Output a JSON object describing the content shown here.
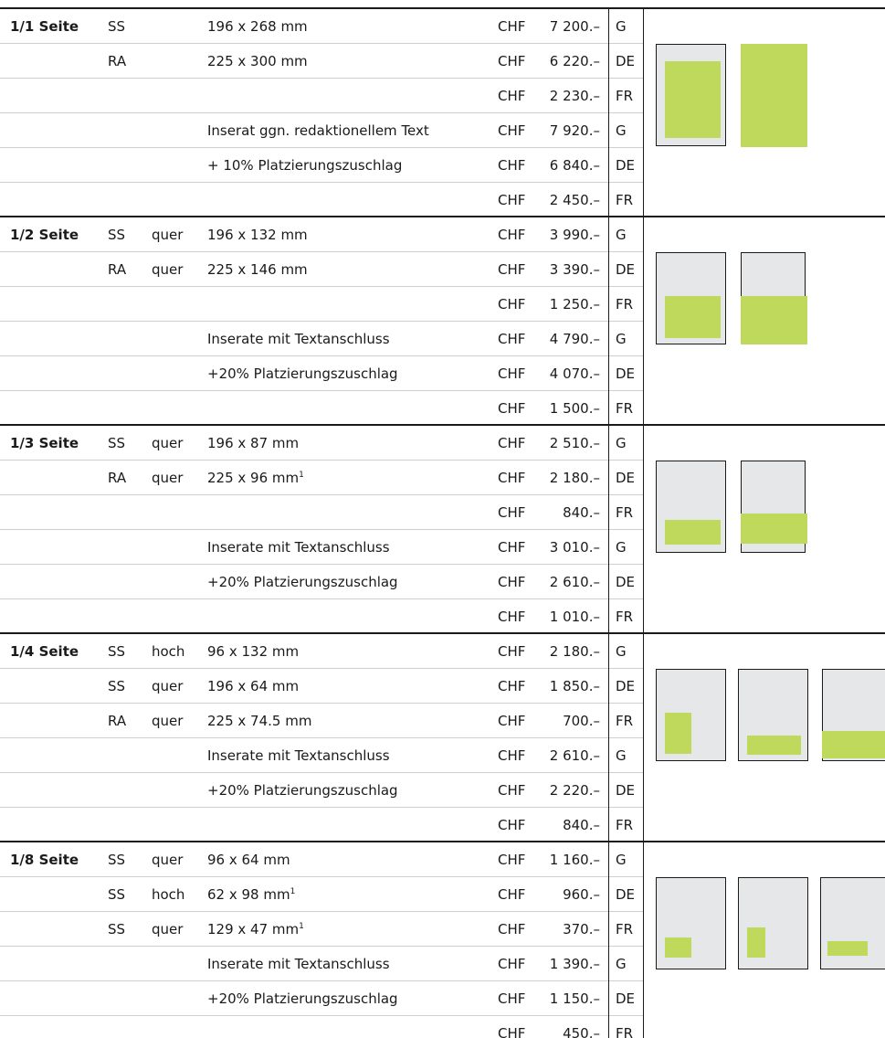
{
  "currency": "CHF",
  "colors": {
    "ad_fill": "#bfd95c",
    "page_bg": "#e6e7e8",
    "rule": "#1a1a1a"
  },
  "sections": [
    {
      "label": "1/1 Seite",
      "rows": [
        {
          "type": "SS",
          "orient": "",
          "desc": "196 x 268 mm",
          "sup": "",
          "amount": "7 200.–",
          "lang": "G"
        },
        {
          "type": "RA",
          "orient": "",
          "desc": "225 x 300 mm",
          "sup": "",
          "amount": "6 220.–",
          "lang": "DE"
        },
        {
          "type": "",
          "orient": "",
          "desc": "",
          "sup": "",
          "amount": "2 230.–",
          "lang": "FR"
        },
        {
          "type": "",
          "orient": "",
          "desc": "Inserat ggn. redaktionellem Text",
          "sup": "",
          "amount": "7 920.–",
          "lang": "G"
        },
        {
          "type": "",
          "orient": "",
          "desc": "+ 10% Platzierungszuschlag",
          "sup": "",
          "amount": "6 840.–",
          "lang": "DE"
        },
        {
          "type": "",
          "orient": "",
          "desc": "",
          "sup": "",
          "amount": "2 450.–",
          "lang": "FR"
        }
      ]
    },
    {
      "label": "1/2 Seite",
      "rows": [
        {
          "type": "SS",
          "orient": "quer",
          "desc": "196 x 132 mm",
          "sup": "",
          "amount": "3 990.–",
          "lang": "G"
        },
        {
          "type": "RA",
          "orient": "quer",
          "desc": "225 x 146 mm",
          "sup": "",
          "amount": "3 390.–",
          "lang": "DE"
        },
        {
          "type": "",
          "orient": "",
          "desc": "",
          "sup": "",
          "amount": "1 250.–",
          "lang": "FR"
        },
        {
          "type": "",
          "orient": "",
          "desc": "Inserate mit Textanschluss",
          "sup": "",
          "amount": "4 790.–",
          "lang": "G"
        },
        {
          "type": "",
          "orient": "",
          "desc": "+20% Platzierungszuschlag",
          "sup": "",
          "amount": "4 070.–",
          "lang": "DE"
        },
        {
          "type": "",
          "orient": "",
          "desc": "",
          "sup": "",
          "amount": "1 500.–",
          "lang": "FR"
        }
      ]
    },
    {
      "label": "1/3 Seite",
      "rows": [
        {
          "type": "SS",
          "orient": "quer",
          "desc": "196 x 87 mm",
          "sup": "",
          "amount": "2 510.–",
          "lang": "G"
        },
        {
          "type": "RA",
          "orient": "quer",
          "desc": "225 x 96 mm",
          "sup": "1",
          "amount": "2 180.–",
          "lang": "DE"
        },
        {
          "type": "",
          "orient": "",
          "desc": "",
          "sup": "",
          "amount": "840.–",
          "lang": "FR"
        },
        {
          "type": "",
          "orient": "",
          "desc": "Inserate mit Textanschluss",
          "sup": "",
          "amount": "3 010.–",
          "lang": "G"
        },
        {
          "type": "",
          "orient": "",
          "desc": "+20% Platzierungszuschlag",
          "sup": "",
          "amount": "2 610.–",
          "lang": "DE"
        },
        {
          "type": "",
          "orient": "",
          "desc": "",
          "sup": "",
          "amount": "1 010.–",
          "lang": "FR"
        }
      ]
    },
    {
      "label": "1/4 Seite",
      "rows": [
        {
          "type": "SS",
          "orient": "hoch",
          "desc": "96 x 132 mm",
          "sup": "",
          "amount": "2 180.–",
          "lang": "G"
        },
        {
          "type": "SS",
          "orient": "quer",
          "desc": "196 x 64 mm",
          "sup": "",
          "amount": "1 850.–",
          "lang": "DE"
        },
        {
          "type": "RA",
          "orient": "quer",
          "desc": "225 x 74.5 mm",
          "sup": "",
          "amount": "700.–",
          "lang": "FR"
        },
        {
          "type": "",
          "orient": "",
          "desc": "Inserate mit Textanschluss",
          "sup": "",
          "amount": "2 610.–",
          "lang": "G"
        },
        {
          "type": "",
          "orient": "",
          "desc": "+20% Platzierungszuschlag",
          "sup": "",
          "amount": "2 220.–",
          "lang": "DE"
        },
        {
          "type": "",
          "orient": "",
          "desc": "",
          "sup": "",
          "amount": "840.–",
          "lang": "FR"
        }
      ]
    },
    {
      "label": "1/8 Seite",
      "rows": [
        {
          "type": "SS",
          "orient": "quer",
          "desc": "96 x 64 mm",
          "sup": "",
          "amount": "1 160.–",
          "lang": "G"
        },
        {
          "type": "SS",
          "orient": "hoch",
          "desc": "62 x 98 mm",
          "sup": "1",
          "amount": "960.–",
          "lang": "DE"
        },
        {
          "type": "SS",
          "orient": "quer",
          "desc": "129 x 47 mm",
          "sup": "1",
          "amount": "370.–",
          "lang": "FR"
        },
        {
          "type": "",
          "orient": "",
          "desc": "Inserate mit Textanschluss",
          "sup": "",
          "amount": "1 390.–",
          "lang": "G"
        },
        {
          "type": "",
          "orient": "",
          "desc": "+20% Platzierungszuschlag",
          "sup": "",
          "amount": "1 150.–",
          "lang": "DE"
        },
        {
          "type": "",
          "orient": "",
          "desc": "",
          "sup": "",
          "amount": "450.–",
          "lang": "FR"
        }
      ]
    }
  ]
}
